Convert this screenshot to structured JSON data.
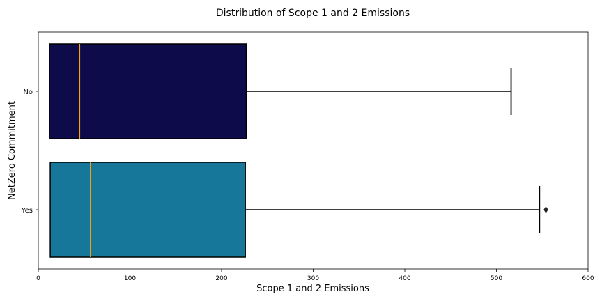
{
  "chart_data": {
    "type": "boxplot",
    "orientation": "horizontal",
    "title": "Distribution of Scope 1 and 2 Emissions",
    "xlabel": "Scope 1 and 2 Emissions",
    "ylabel": "NetZero Commitment",
    "xlim": [
      0,
      600
    ],
    "xticks": [
      0,
      100,
      200,
      300,
      400,
      500,
      600
    ],
    "grid": false,
    "median_color": "#ffa500",
    "categories": [
      "No",
      "Yes"
    ],
    "boxes": [
      {
        "category": "No",
        "whisker_low": 12,
        "q1": 12,
        "median": 45,
        "q3": 227,
        "whisker_high": 516,
        "outliers": [],
        "color": "#0e0b4a"
      },
      {
        "category": "Yes",
        "whisker_low": 13,
        "q1": 13,
        "median": 57,
        "q3": 226,
        "whisker_high": 547,
        "outliers": [
          554
        ],
        "color": "#17779a"
      }
    ]
  }
}
